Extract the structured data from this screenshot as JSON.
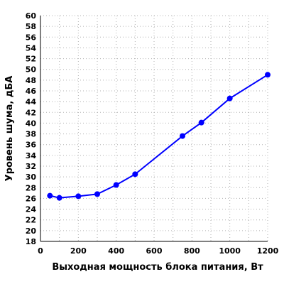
{
  "chart_data": {
    "type": "line",
    "xlabel": "Выходная мощность блока питания, Вт",
    "ylabel": "Уровень шума, дБА",
    "xlim": [
      0,
      1200
    ],
    "ylim": [
      18,
      60
    ],
    "x_ticks": [
      0,
      200,
      400,
      600,
      800,
      1000,
      1200
    ],
    "y_ticks": [
      18,
      20,
      22,
      24,
      26,
      28,
      30,
      32,
      34,
      36,
      38,
      40,
      42,
      44,
      46,
      48,
      50,
      52,
      54,
      56,
      58,
      60
    ],
    "x_minor_grid_step": 100,
    "grid": true,
    "series": [
      {
        "color": "#0000ff",
        "x": [
          50,
          100,
          200,
          300,
          400,
          500,
          750,
          850,
          1000,
          1200
        ],
        "y": [
          26.5,
          26.1,
          26.4,
          26.8,
          28.5,
          30.5,
          37.6,
          40.1,
          44.6,
          49.0
        ]
      }
    ]
  }
}
